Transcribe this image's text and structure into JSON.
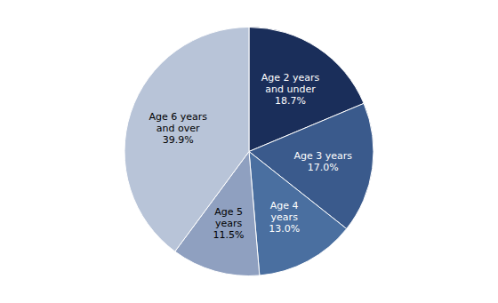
{
  "chart_data": {
    "type": "pie",
    "categories": [
      "Age 2 years\nand under",
      "Age 3 years",
      "Age 4\nyears",
      "Age 5\nyears",
      "Age 6 years\nand over"
    ],
    "values": [
      18.7,
      17.0,
      13.0,
      11.5,
      39.9
    ],
    "value_labels": [
      "18.7%",
      "17.0%",
      "13.0%",
      "11.5%",
      "39.9%"
    ],
    "colors": [
      "#1a2e5a",
      "#3a5a8c",
      "#4a6fa0",
      "#8fa0c0",
      "#b8c4d8"
    ],
    "data_labels": true
  }
}
